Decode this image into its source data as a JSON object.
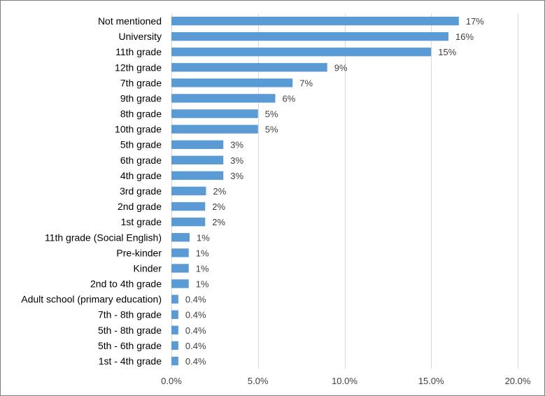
{
  "chart_data": {
    "type": "bar",
    "orientation": "horizontal",
    "categories": [
      "Not mentioned",
      "University",
      "11th grade",
      "12th grade",
      "7th grade",
      "9th grade",
      "8th grade",
      "10th grade",
      "5th grade",
      "6th grade",
      "4th grade",
      "3rd grade",
      "2nd grade",
      "1st grade",
      "11th grade (Social English)",
      "Pre-kinder",
      "Kinder",
      "2nd to 4th grade",
      "Adult school (primary education)",
      "7th - 8th grade",
      "5th - 8th grade",
      "5th - 6th grade",
      "1st - 4th grade"
    ],
    "values": [
      16.6,
      16.0,
      15.0,
      9.0,
      7.0,
      6.0,
      5.0,
      5.0,
      3.0,
      3.0,
      3.0,
      2.0,
      1.95,
      1.95,
      1.05,
      1.0,
      1.0,
      1.0,
      0.4,
      0.4,
      0.4,
      0.4,
      0.4
    ],
    "data_labels": [
      "17%",
      "16%",
      "15%",
      "9%",
      "7%",
      "6%",
      "5%",
      "5%",
      "3%",
      "3%",
      "3%",
      "2%",
      "2%",
      "2%",
      "1%",
      "1%",
      "1%",
      "1%",
      "0.4%",
      "0.4%",
      "0.4%",
      "0.4%",
      "0.4%"
    ],
    "xlim": [
      0,
      20
    ],
    "x_ticks": [
      0,
      5,
      10,
      15,
      20
    ],
    "x_tick_labels": [
      "0.0%",
      "5.0%",
      "10.0%",
      "15.0%",
      "20.0%"
    ],
    "grid": "vertical",
    "legend": "none",
    "bar_color": "#5b9bd5",
    "grid_color": "#d9d9d9"
  }
}
